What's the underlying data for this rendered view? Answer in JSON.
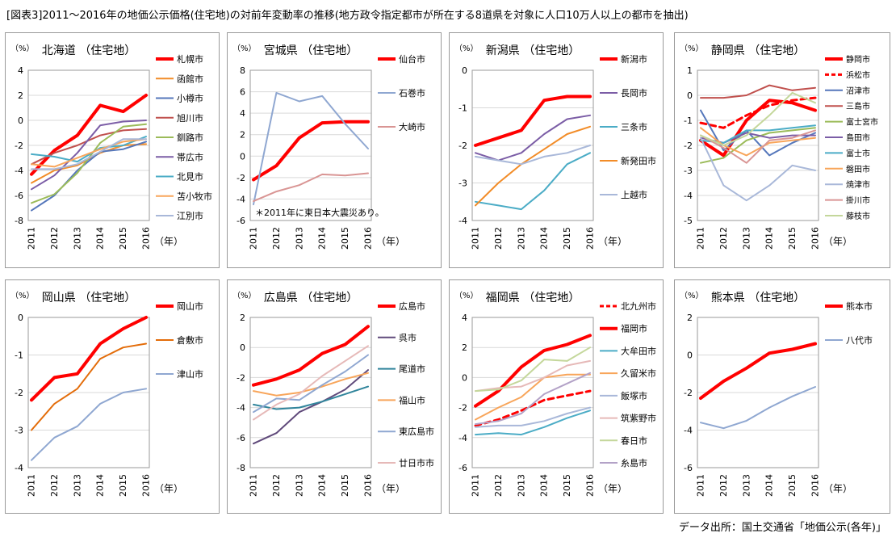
{
  "page": {
    "title": "[図表3]2011～2016年の地価公示価格(住宅地)の対前年変動率の推移(地方政令指定都市が所在する8道県を対象に人口10万人以上の都市を抽出)",
    "source": "データ出所：国土交通省「地価公示(各年)」"
  },
  "chart_data": [
    {
      "type": "line",
      "title": "北海道 （住宅地）",
      "ylabel": "（%）",
      "xlabel": "（年）",
      "x": [
        2011,
        2012,
        2013,
        2014,
        2015,
        2016
      ],
      "ylim": [
        -8,
        4
      ],
      "yticks": [
        4,
        2,
        0,
        -2,
        -4,
        -6,
        -8
      ],
      "series": [
        {
          "name": "札幌市",
          "color": "#ff0000",
          "width": 4,
          "values": [
            -4.3,
            -2.4,
            -1.2,
            1.2,
            0.7,
            2.0
          ]
        },
        {
          "name": "函館市",
          "color": "#f28c28",
          "width": 2,
          "values": [
            -5.0,
            -4.0,
            -3.6,
            -2.6,
            -2.0,
            -1.9
          ]
        },
        {
          "name": "小樽市",
          "color": "#5577bb",
          "width": 2,
          "values": [
            -7.2,
            -6.0,
            -4.0,
            -2.5,
            -2.3,
            -1.7
          ]
        },
        {
          "name": "旭川市",
          "color": "#c0504d",
          "width": 2,
          "values": [
            -3.5,
            -2.6,
            -2.0,
            -1.2,
            -0.8,
            -0.7
          ]
        },
        {
          "name": "釧路市",
          "color": "#9bbb59",
          "width": 2,
          "values": [
            -6.6,
            -5.9,
            -4.2,
            -1.8,
            -0.5,
            -0.3
          ]
        },
        {
          "name": "帯広市",
          "color": "#7b5da6",
          "width": 2,
          "values": [
            -5.5,
            -4.4,
            -2.6,
            -0.4,
            -0.1,
            0.0
          ]
        },
        {
          "name": "北見市",
          "color": "#4bacc6",
          "width": 2,
          "values": [
            -2.7,
            -2.9,
            -3.3,
            -2.2,
            -2.0,
            -1.3
          ]
        },
        {
          "name": "苫小牧市",
          "color": "#f8a55a",
          "width": 2,
          "values": [
            -3.5,
            -3.7,
            -3.0,
            -2.3,
            -1.7,
            -1.5
          ]
        },
        {
          "name": "江別市",
          "color": "#a9b8d9",
          "width": 2,
          "values": [
            -3.9,
            -3.9,
            -3.5,
            -2.5,
            -1.5,
            -1.5
          ]
        }
      ]
    },
    {
      "type": "line",
      "title": "宮城県 （住宅地）",
      "ylabel": "（%）",
      "xlabel": "（年）",
      "x": [
        2011,
        2012,
        2013,
        2014,
        2015,
        2016
      ],
      "ylim": [
        -6,
        8
      ],
      "yticks": [
        8,
        6,
        4,
        2,
        0,
        -2,
        -4,
        -6
      ],
      "annotation": "＊2011年に東日本大震災あり。",
      "series": [
        {
          "name": "仙台市",
          "color": "#ff0000",
          "width": 4,
          "values": [
            -2.2,
            -0.9,
            1.7,
            3.1,
            3.2,
            3.2
          ]
        },
        {
          "name": "石巻市",
          "color": "#8fa7d1",
          "width": 2,
          "values": [
            -4.5,
            5.9,
            5.1,
            5.6,
            3.0,
            0.7
          ]
        },
        {
          "name": "大崎市",
          "color": "#d99594",
          "width": 2,
          "values": [
            -4.2,
            -3.3,
            -2.7,
            -1.7,
            -1.8,
            -1.6
          ]
        }
      ]
    },
    {
      "type": "line",
      "title": "新潟県 （住宅地）",
      "ylabel": "（%）",
      "xlabel": "（年）",
      "x": [
        2011,
        2012,
        2013,
        2014,
        2015,
        2016
      ],
      "ylim": [
        -4,
        0
      ],
      "yticks": [
        0,
        -1,
        -2,
        -3,
        -4
      ],
      "series": [
        {
          "name": "新潟市",
          "color": "#ff0000",
          "width": 4,
          "values": [
            -2.0,
            -1.8,
            -1.6,
            -0.8,
            -0.7,
            -0.7
          ]
        },
        {
          "name": "長岡市",
          "color": "#7b5da6",
          "width": 2,
          "values": [
            -2.2,
            -2.4,
            -2.2,
            -1.7,
            -1.3,
            -1.2
          ]
        },
        {
          "name": "三条市",
          "color": "#4bacc6",
          "width": 2,
          "values": [
            -3.5,
            -3.6,
            -3.7,
            -3.2,
            -2.5,
            -2.2
          ]
        },
        {
          "name": "新発田市",
          "color": "#f28c28",
          "width": 2,
          "values": [
            -3.6,
            -3.0,
            -2.5,
            -2.1,
            -1.7,
            -1.5
          ]
        },
        {
          "name": "上越市",
          "color": "#a9b8d9",
          "width": 2,
          "values": [
            -2.3,
            -2.4,
            -2.5,
            -2.3,
            -2.2,
            -2.0
          ]
        }
      ]
    },
    {
      "type": "line",
      "title": "静岡県 （住宅地）",
      "ylabel": "（%）",
      "xlabel": "（年）",
      "x": [
        2011,
        2012,
        2013,
        2014,
        2015,
        2016
      ],
      "ylim": [
        -5,
        1
      ],
      "yticks": [
        1,
        0,
        -1,
        -2,
        -3,
        -4,
        -5
      ],
      "series": [
        {
          "name": "静岡市",
          "color": "#ff0000",
          "width": 4,
          "values": [
            -1.8,
            -2.4,
            -1.0,
            -0.2,
            -0.3,
            -0.6
          ]
        },
        {
          "name": "浜松市",
          "color": "#ff0000",
          "width": 3,
          "dash": "7,5",
          "values": [
            -1.1,
            -1.3,
            -0.8,
            -0.4,
            -0.2,
            -0.1
          ]
        },
        {
          "name": "沼津市",
          "color": "#5577bb",
          "width": 2,
          "values": [
            -0.6,
            -2.2,
            -1.4,
            -2.4,
            -1.9,
            -1.5
          ]
        },
        {
          "name": "三島市",
          "color": "#c0504d",
          "width": 2,
          "values": [
            -0.1,
            -0.1,
            0.0,
            0.4,
            0.2,
            0.3
          ]
        },
        {
          "name": "富士宮市",
          "color": "#9bbb59",
          "width": 2,
          "values": [
            -2.7,
            -2.5,
            -1.8,
            -1.5,
            -1.4,
            -1.3
          ]
        },
        {
          "name": "島田市",
          "color": "#7b5da6",
          "width": 2,
          "values": [
            -1.7,
            -1.9,
            -1.5,
            -1.7,
            -1.6,
            -1.6
          ]
        },
        {
          "name": "富士市",
          "color": "#4bacc6",
          "width": 2,
          "values": [
            -1.8,
            -1.9,
            -1.4,
            -1.4,
            -1.3,
            -1.2
          ]
        },
        {
          "name": "磐田市",
          "color": "#f8a55a",
          "width": 2,
          "values": [
            -1.3,
            -2.0,
            -2.4,
            -1.9,
            -1.8,
            -1.7
          ]
        },
        {
          "name": "焼津市",
          "color": "#a9b8d9",
          "width": 2,
          "values": [
            -1.7,
            -3.6,
            -4.2,
            -3.6,
            -2.8,
            -3.0
          ]
        },
        {
          "name": "掛川市",
          "color": "#d99594",
          "width": 2,
          "values": [
            -1.6,
            -2.1,
            -2.7,
            -1.8,
            -1.7,
            -1.4
          ]
        },
        {
          "name": "藤枝市",
          "color": "#c4d79b",
          "width": 2,
          "values": [
            -1.6,
            -2.0,
            -1.6,
            -0.8,
            0.1,
            -0.3
          ]
        }
      ]
    },
    {
      "type": "line",
      "title": "岡山県 （住宅地）",
      "ylabel": "（%）",
      "xlabel": "（年）",
      "x": [
        2011,
        2012,
        2013,
        2014,
        2015,
        2016
      ],
      "ylim": [
        -4,
        0
      ],
      "yticks": [
        0,
        -1,
        -2,
        -3,
        -4
      ],
      "series": [
        {
          "name": "岡山市",
          "color": "#ff0000",
          "width": 4,
          "values": [
            -2.2,
            -1.6,
            -1.5,
            -0.7,
            -0.3,
            0.0
          ]
        },
        {
          "name": "倉敷市",
          "color": "#e36c09",
          "width": 2,
          "values": [
            -3.0,
            -2.3,
            -1.9,
            -1.1,
            -0.8,
            -0.7
          ]
        },
        {
          "name": "津山市",
          "color": "#8fa7d1",
          "width": 2,
          "values": [
            -3.8,
            -3.2,
            -2.9,
            -2.3,
            -2.0,
            -1.9
          ]
        }
      ]
    },
    {
      "type": "line",
      "title": "広島県 （住宅地）",
      "ylabel": "（%）",
      "xlabel": "（年）",
      "x": [
        2011,
        2012,
        2013,
        2014,
        2015,
        2016
      ],
      "ylim": [
        -8,
        2
      ],
      "yticks": [
        2,
        0,
        -2,
        -4,
        -6,
        -8
      ],
      "series": [
        {
          "name": "広島市",
          "color": "#ff0000",
          "width": 4,
          "values": [
            -2.5,
            -2.1,
            -1.5,
            -0.4,
            0.2,
            1.4
          ]
        },
        {
          "name": "呉市",
          "color": "#604a7b",
          "width": 2,
          "values": [
            -6.4,
            -5.7,
            -4.3,
            -3.6,
            -2.8,
            -1.5
          ]
        },
        {
          "name": "尾道市",
          "color": "#31859c",
          "width": 2,
          "values": [
            -3.8,
            -4.1,
            -4.0,
            -3.6,
            -3.1,
            -2.6
          ]
        },
        {
          "name": "福山市",
          "color": "#f8a55a",
          "width": 2,
          "values": [
            -2.9,
            -3.2,
            -3.0,
            -2.6,
            -2.1,
            -1.7
          ]
        },
        {
          "name": "東広島市",
          "color": "#8fa7d1",
          "width": 2,
          "values": [
            -4.3,
            -3.4,
            -3.5,
            -2.5,
            -1.6,
            -0.5
          ]
        },
        {
          "name": "廿日市市",
          "color": "#e6b9b8",
          "width": 2,
          "values": [
            -4.8,
            -3.8,
            -3.1,
            -1.9,
            -0.9,
            0.1
          ]
        }
      ]
    },
    {
      "type": "line",
      "title": "福岡県 （住宅地）",
      "ylabel": "（%）",
      "xlabel": "（年）",
      "x": [
        2011,
        2012,
        2013,
        2014,
        2015,
        2016
      ],
      "ylim": [
        -6,
        4
      ],
      "yticks": [
        4,
        2,
        0,
        -2,
        -4,
        -6
      ],
      "series": [
        {
          "name": "北九州市",
          "color": "#ff0000",
          "width": 3,
          "dash": "7,5",
          "values": [
            -3.2,
            -2.8,
            -2.2,
            -1.5,
            -1.2,
            -0.9
          ]
        },
        {
          "name": "福岡市",
          "color": "#ff0000",
          "width": 4,
          "values": [
            -1.9,
            -0.9,
            0.7,
            1.8,
            2.2,
            2.8
          ]
        },
        {
          "name": "大牟田市",
          "color": "#4bacc6",
          "width": 2,
          "values": [
            -3.8,
            -3.7,
            -3.8,
            -3.3,
            -2.7,
            -2.2
          ]
        },
        {
          "name": "久留米市",
          "color": "#f8a55a",
          "width": 2,
          "values": [
            -2.8,
            -2.0,
            -1.3,
            0.0,
            0.2,
            0.2
          ]
        },
        {
          "name": "飯塚市",
          "color": "#a9b8d9",
          "width": 2,
          "values": [
            -3.3,
            -3.2,
            -3.2,
            -2.9,
            -2.4,
            -2.0
          ]
        },
        {
          "name": "筑紫野市",
          "color": "#e6b9b8",
          "width": 2,
          "values": [
            -0.9,
            -0.7,
            -0.6,
            0.0,
            0.8,
            1.1
          ]
        },
        {
          "name": "春日市",
          "color": "#c4d79b",
          "width": 2,
          "values": [
            -0.9,
            -0.8,
            -0.2,
            1.2,
            1.1,
            2.0
          ]
        },
        {
          "name": "糸島市",
          "color": "#b3a2c7",
          "width": 2,
          "values": [
            -3.1,
            -2.9,
            -2.4,
            -1.1,
            -0.4,
            0.3
          ]
        }
      ]
    },
    {
      "type": "line",
      "title": "熊本県 （住宅地）",
      "ylabel": "（%）",
      "xlabel": "（年）",
      "x": [
        2011,
        2012,
        2013,
        2014,
        2015,
        2016
      ],
      "ylim": [
        -6,
        2
      ],
      "yticks": [
        2,
        0,
        -2,
        -4,
        -6
      ],
      "series": [
        {
          "name": "熊本市",
          "color": "#ff0000",
          "width": 4,
          "values": [
            -2.3,
            -1.4,
            -0.7,
            0.1,
            0.3,
            0.6
          ]
        },
        {
          "name": "八代市",
          "color": "#8fa7d1",
          "width": 2,
          "values": [
            -3.6,
            -3.9,
            -3.5,
            -2.8,
            -2.2,
            -1.7
          ]
        }
      ]
    }
  ]
}
